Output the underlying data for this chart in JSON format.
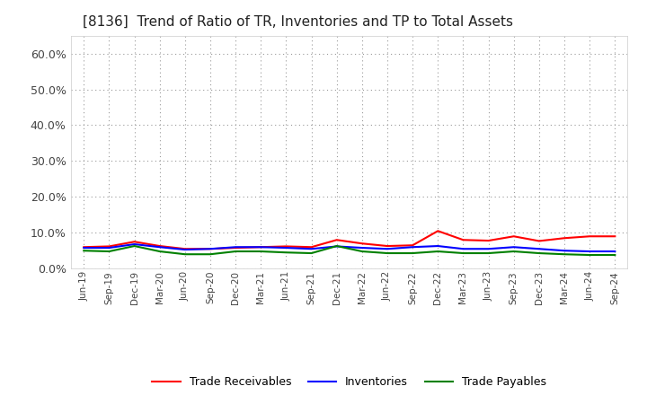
{
  "title": "[8136]  Trend of Ratio of TR, Inventories and TP to Total Assets",
  "labels": [
    "Jun-19",
    "Sep-19",
    "Dec-19",
    "Mar-20",
    "Jun-20",
    "Sep-20",
    "Dec-20",
    "Mar-21",
    "Jun-21",
    "Sep-21",
    "Dec-21",
    "Mar-22",
    "Jun-22",
    "Sep-22",
    "Dec-22",
    "Mar-23",
    "Jun-23",
    "Sep-23",
    "Dec-23",
    "Mar-24",
    "Jun-24",
    "Sep-24"
  ],
  "trade_receivables": [
    0.06,
    0.062,
    0.075,
    0.063,
    0.055,
    0.055,
    0.058,
    0.06,
    0.062,
    0.06,
    0.08,
    0.07,
    0.063,
    0.065,
    0.105,
    0.08,
    0.078,
    0.09,
    0.077,
    0.085,
    0.09,
    0.09
  ],
  "inventories": [
    0.058,
    0.058,
    0.068,
    0.06,
    0.053,
    0.055,
    0.06,
    0.06,
    0.058,
    0.055,
    0.062,
    0.058,
    0.055,
    0.06,
    0.063,
    0.055,
    0.055,
    0.06,
    0.055,
    0.05,
    0.048,
    0.048
  ],
  "trade_payables": [
    0.05,
    0.048,
    0.063,
    0.048,
    0.04,
    0.04,
    0.048,
    0.048,
    0.045,
    0.043,
    0.063,
    0.048,
    0.043,
    0.043,
    0.048,
    0.043,
    0.043,
    0.048,
    0.043,
    0.04,
    0.038,
    0.038
  ],
  "tr_color": "#ff0000",
  "inv_color": "#0000ff",
  "tp_color": "#008000",
  "ylim": [
    0.0,
    0.65
  ],
  "yticks": [
    0.0,
    0.1,
    0.2,
    0.3,
    0.4,
    0.5,
    0.6
  ],
  "background_color": "#ffffff",
  "grid_color": "#aaaaaa",
  "legend_labels": [
    "Trade Receivables",
    "Inventories",
    "Trade Payables"
  ]
}
